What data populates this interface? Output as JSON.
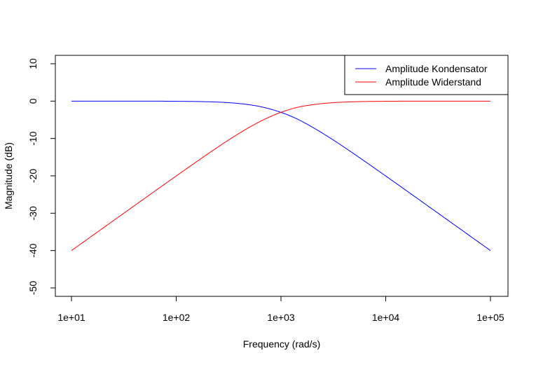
{
  "chart_data": {
    "type": "line",
    "title": "",
    "xlabel": "Frequency (rad/s)",
    "ylabel": "Magnitude (dB)",
    "x_scale": "log10",
    "xlim": [
      10,
      100000
    ],
    "ylim": [
      -50,
      10
    ],
    "x_ticks": [
      10,
      100,
      1000,
      10000,
      100000
    ],
    "x_tick_labels": [
      "1e+01",
      "1e+02",
      "1e+03",
      "1e+04",
      "1e+05"
    ],
    "y_ticks": [
      -50,
      -40,
      -30,
      -20,
      -10,
      0,
      10
    ],
    "y_tick_labels": [
      "-50",
      "-40",
      "-30",
      "-20",
      "-10",
      "0",
      "10"
    ],
    "grid": false,
    "legend_position": "top-right",
    "series": [
      {
        "name": "Amplitude Kondensator",
        "color": "#0000ff",
        "x": [
          10,
          31.6,
          100,
          200,
          316,
          500,
          700,
          1000,
          1400,
          2000,
          3162,
          5000,
          10000,
          31623,
          100000
        ],
        "y": [
          0.0,
          0.0,
          -0.04,
          -0.17,
          -0.41,
          -0.97,
          -1.74,
          -3.01,
          -4.67,
          -6.99,
          -10.41,
          -14.15,
          -20.04,
          -30.0,
          -40.0
        ]
      },
      {
        "name": "Amplitude Widerstand",
        "color": "#ff0000",
        "x": [
          10,
          31.6,
          100,
          200,
          316,
          500,
          700,
          1000,
          1400,
          2000,
          3162,
          5000,
          10000,
          31623,
          100000
        ],
        "y": [
          -40.0,
          -30.0,
          -20.04,
          -14.15,
          -10.41,
          -6.99,
          -4.84,
          -3.01,
          -1.74,
          -0.97,
          -0.41,
          -0.17,
          -0.04,
          0.0,
          0.0
        ]
      }
    ]
  }
}
